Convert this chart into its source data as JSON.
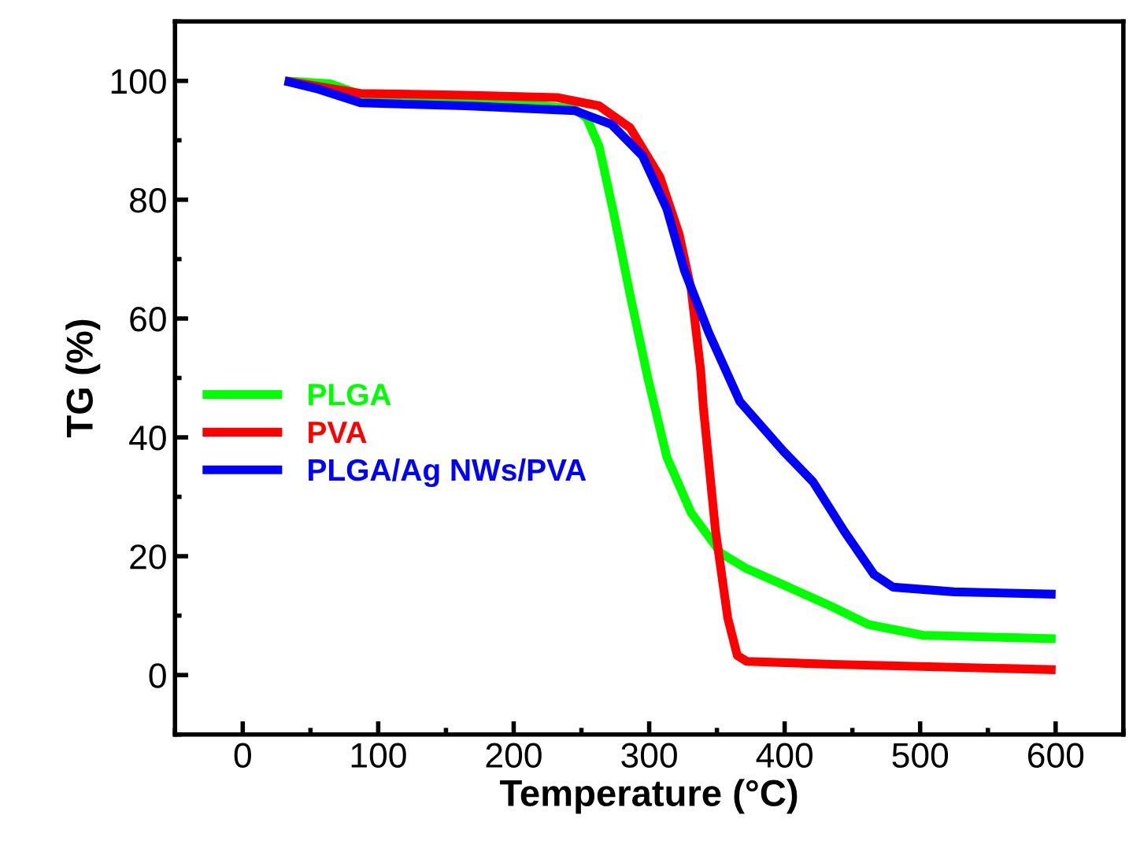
{
  "chart_data": {
    "type": "line",
    "xlabel": "Temperature (°C)",
    "ylabel": "TG (%)",
    "xlim": [
      -50,
      650
    ],
    "ylim": [
      -10,
      110
    ],
    "xticks": [
      0,
      100,
      200,
      300,
      400,
      500,
      600
    ],
    "yticks": [
      0,
      20,
      40,
      60,
      80,
      100
    ],
    "grid": false,
    "legend": "left",
    "line_style": "solid",
    "series": [
      {
        "name": "PLGA",
        "color": "#00ff00",
        "x": [
          31,
          65,
          87,
          164,
          245,
          254,
          263,
          274,
          286,
          299,
          313,
          331,
          353,
          372,
          398,
          435,
          462,
          502,
          600
        ],
        "values": [
          100,
          99.5,
          97.7,
          97.1,
          95.3,
          93.7,
          89,
          77.5,
          63.9,
          50,
          36.7,
          27.3,
          20.5,
          17.9,
          15.3,
          11.5,
          8.5,
          6.7,
          6.1
        ]
      },
      {
        "name": "PVA",
        "color": "#ff0000",
        "x": [
          31,
          87,
          164,
          232,
          263,
          286,
          308,
          322,
          331,
          338,
          340,
          349,
          358,
          365,
          372,
          435,
          525,
          600
        ],
        "values": [
          100,
          97.9,
          97.6,
          97.2,
          95.8,
          92.1,
          83.8,
          74.3,
          64.9,
          51.3,
          45,
          24.2,
          9.6,
          3.3,
          2.3,
          1.8,
          1.3,
          0.9
        ]
      },
      {
        "name": "PLGA/Ag NWs/PVA",
        "color": "#0000ff",
        "x": [
          31,
          56,
          87,
          164,
          245,
          272,
          295,
          313,
          326,
          344,
          367,
          399,
          421,
          444,
          466,
          480,
          525,
          600
        ],
        "values": [
          100,
          98.6,
          96.3,
          95.8,
          95,
          92.7,
          87.4,
          78.5,
          68.1,
          57.6,
          46,
          37.7,
          32.5,
          24.2,
          16.9,
          14.8,
          14,
          13.6
        ]
      }
    ]
  }
}
